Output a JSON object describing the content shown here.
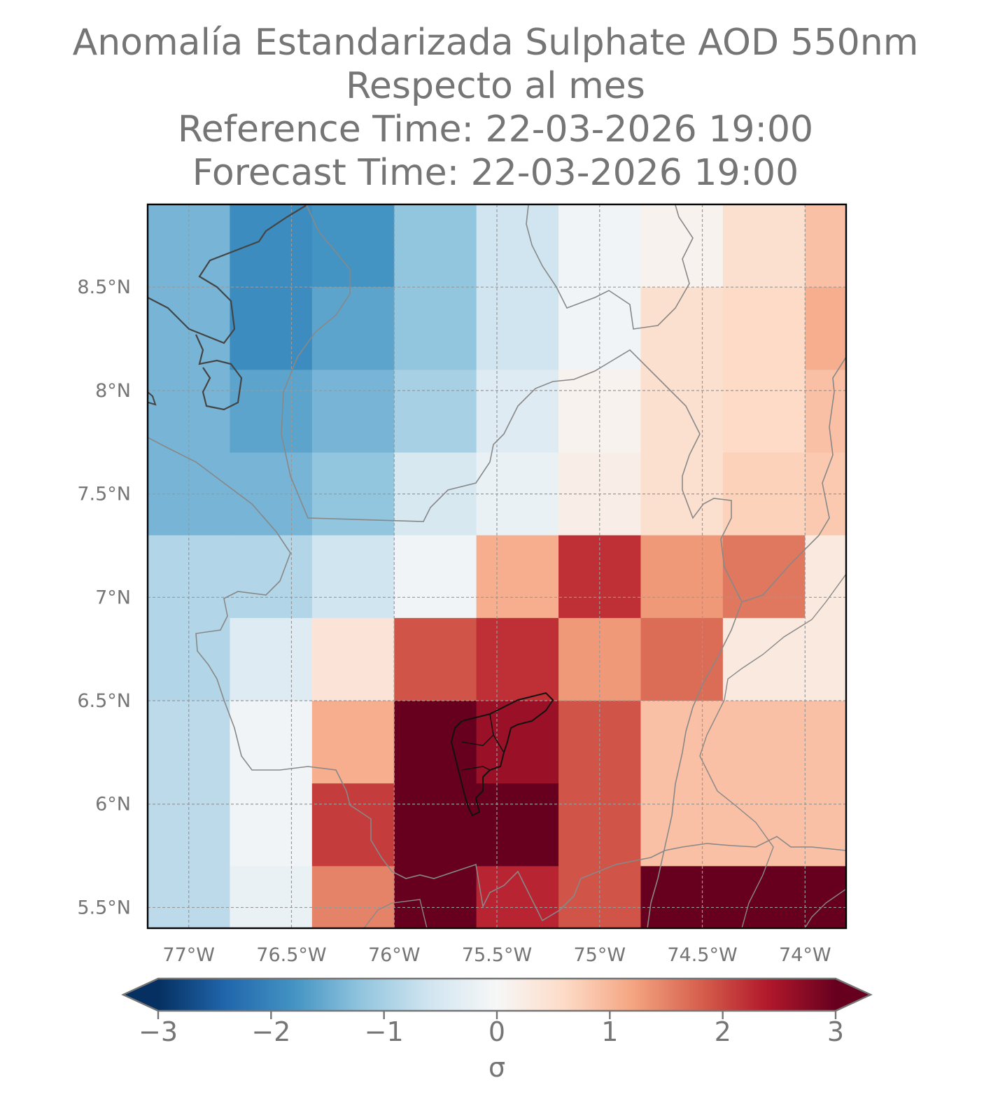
{
  "title": {
    "line1": "Anomalía Estandarizada Sulphate AOD 550nm",
    "line2": "Respecto al mes",
    "line3": "Reference Time: 22-03-2026 19:00",
    "line4": "Forecast Time: 22-03-2026 19:00"
  },
  "map": {
    "lon_range": [
      -77.2,
      -73.8
    ],
    "lat_range": [
      5.4,
      8.9
    ],
    "grid_lon_start": -77.2,
    "grid_lat_top": 8.9,
    "cell_size_deg": 0.4,
    "lat_ticks": [
      {
        "value": 8.5,
        "label": "8.5°N"
      },
      {
        "value": 8.0,
        "label": "8°N"
      },
      {
        "value": 7.5,
        "label": "7.5°N"
      },
      {
        "value": 7.0,
        "label": "7°N"
      },
      {
        "value": 6.5,
        "label": "6.5°N"
      },
      {
        "value": 6.0,
        "label": "6°N"
      },
      {
        "value": 5.5,
        "label": "5.5°N"
      }
    ],
    "lon_ticks": [
      {
        "value": -77.0,
        "label": "77°W"
      },
      {
        "value": -76.5,
        "label": "76.5°W"
      },
      {
        "value": -76.0,
        "label": "76°W"
      },
      {
        "value": -75.5,
        "label": "75.5°W"
      },
      {
        "value": -75.0,
        "label": "75°W"
      },
      {
        "value": -74.5,
        "label": "74.5°W"
      },
      {
        "value": -74.0,
        "label": "74°W"
      }
    ],
    "gridlines": true,
    "anomaly_grid": [
      [
        -1.4,
        -1.9,
        -1.8,
        -1.2,
        -0.6,
        -0.1,
        0.1,
        0.5,
        0.9
      ],
      [
        -1.4,
        -1.9,
        -1.6,
        -1.2,
        -0.6,
        -0.1,
        0.5,
        0.6,
        1.1
      ],
      [
        -1.4,
        -1.6,
        -1.4,
        -1.0,
        -0.4,
        0.1,
        0.5,
        0.6,
        0.9
      ],
      [
        -1.4,
        -1.4,
        -1.2,
        -0.5,
        -0.2,
        0.2,
        0.5,
        0.7,
        0.8
      ],
      [
        -0.9,
        -0.9,
        -0.6,
        -0.1,
        1.1,
        2.2,
        1.3,
        1.6,
        0.3
      ],
      [
        -0.9,
        -0.4,
        0.4,
        1.9,
        2.2,
        1.3,
        1.7,
        0.3,
        0.3
      ],
      [
        -0.8,
        -0.1,
        1.1,
        3.0,
        2.6,
        1.9,
        0.9,
        0.9,
        0.9
      ],
      [
        -0.8,
        -0.1,
        2.1,
        3.0,
        3.0,
        1.9,
        0.9,
        0.9,
        0.9
      ],
      [
        -0.8,
        -0.2,
        1.5,
        3.0,
        2.3,
        1.9,
        3.0,
        3.0,
        3.0
      ]
    ]
  },
  "colorbar": {
    "min": -3,
    "max": 3,
    "extend": "both",
    "colormap": "RdBu_r",
    "tick_labels": [
      "−3",
      "−2",
      "−1",
      "0",
      "1",
      "2",
      "3"
    ],
    "tick_values": [
      -3,
      -2,
      -1,
      0,
      1,
      2,
      3
    ],
    "label": "σ",
    "colors": [
      "#053061",
      "#2166ac",
      "#4393c3",
      "#92c5de",
      "#d1e5f0",
      "#f7f7f7",
      "#fddbc7",
      "#f4a582",
      "#d6604d",
      "#b2182b",
      "#67001f"
    ]
  }
}
